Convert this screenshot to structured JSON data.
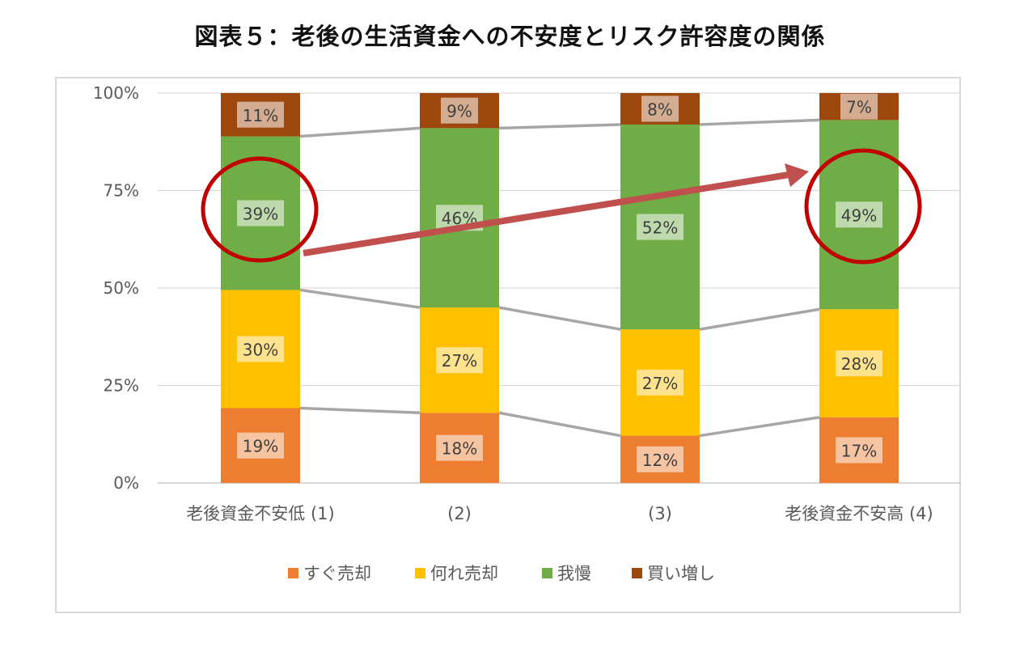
{
  "title": "図表５：老後の生活資金への不安度とリスク許容度の関係",
  "chart_data": {
    "type": "bar",
    "stacked": true,
    "categories": [
      "老後資金不安低 (1)",
      "(2)",
      "(3)",
      "老後資金不安高 (4)"
    ],
    "series": [
      {
        "name": "すぐ売却",
        "color": "#ED7D31",
        "values": [
          19,
          18,
          12,
          17
        ]
      },
      {
        "name": "何れ売却",
        "color": "#FFC000",
        "values": [
          30,
          27,
          27,
          28
        ]
      },
      {
        "name": "我慢",
        "color": "#70AD47",
        "values": [
          39,
          46,
          52,
          49
        ]
      },
      {
        "name": "買い増し",
        "color": "#9E480E",
        "values": [
          11,
          9,
          8,
          7
        ]
      }
    ],
    "ylim": [
      0,
      100
    ],
    "yticks": [
      "0%",
      "25%",
      "50%",
      "75%",
      "100%"
    ],
    "grid": true,
    "legend": "bottom",
    "annotations": {
      "circles_on": "我慢 at 老後資金不安低 (1) and 老後資金不安高 (4)",
      "arrow": "from 老後資金不安低 (1) to 老後資金不安高 (4)",
      "circle_color": "#C00000",
      "arrow_color": "#C0504D"
    }
  }
}
